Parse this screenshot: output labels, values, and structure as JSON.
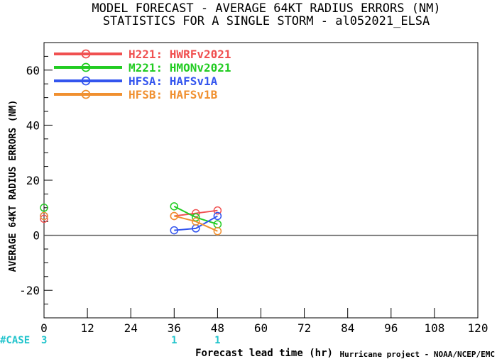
{
  "chart_data": {
    "type": "line",
    "title": "MODEL FORECAST - AVERAGE 64KT RADIUS ERRORS (NM)",
    "subtitle": "STATISTICS FOR A SINGLE STORM - al052021_ELSA",
    "xlabel": "Forecast lead time (hr)",
    "ylabel": "AVERAGE 64KT RADIUS ERRORS (NM)",
    "xlim": [
      0,
      120
    ],
    "ylim": [
      -30,
      70
    ],
    "xticks": [
      0,
      12,
      24,
      36,
      48,
      60,
      72,
      84,
      96,
      108,
      120
    ],
    "yticks": [
      -20,
      0,
      20,
      40,
      60
    ],
    "case_label": "#CASE",
    "cases": [
      {
        "x": 0,
        "label": "3"
      },
      {
        "x": 36,
        "label": "1"
      },
      {
        "x": 48,
        "label": "1"
      }
    ],
    "credit": "Hurricane project - NOAA/NCEP/EMC",
    "legend_position": "top-left",
    "series": [
      {
        "name": "H221: HWRFv2021",
        "color": "#f05050",
        "points": [
          [
            0,
            6
          ],
          [
            36,
            7
          ],
          [
            42,
            8
          ],
          [
            48,
            9
          ]
        ]
      },
      {
        "name": "M221: HMONv2021",
        "color": "#22cc22",
        "points": [
          [
            0,
            10
          ],
          [
            36,
            10.5
          ],
          [
            42,
            6.5
          ],
          [
            48,
            4
          ]
        ]
      },
      {
        "name": "HFSA: HAFSv1A",
        "color": "#3355ee",
        "points": [
          [
            0,
            7
          ],
          [
            36,
            1.8
          ],
          [
            42,
            2.5
          ],
          [
            48,
            7
          ]
        ]
      },
      {
        "name": "HFSB: HAFSv1B",
        "color": "#f09030",
        "points": [
          [
            0,
            7
          ],
          [
            36,
            7
          ],
          [
            42,
            5
          ],
          [
            48,
            1.5
          ]
        ]
      }
    ]
  }
}
